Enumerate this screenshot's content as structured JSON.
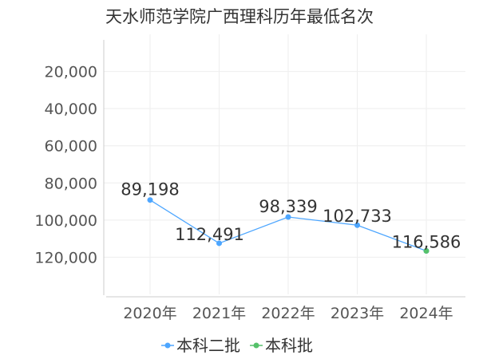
{
  "chart_data": {
    "type": "line",
    "title": "天水师范学院广西理科历年最低名次",
    "categories": [
      "2020年",
      "2021年",
      "2022年",
      "2023年",
      "2024年"
    ],
    "y_ticks": [
      "20,000",
      "40,000",
      "60,000",
      "80,000",
      "100,000",
      "120,000"
    ],
    "ylim": [
      140000,
      0
    ],
    "y_inverted": true,
    "series": [
      {
        "name": "本科二批",
        "color": "#4da6ff",
        "values": [
          89198,
          112491,
          98339,
          102733,
          116586
        ],
        "data_labels": [
          "89,198",
          "112,491",
          "98,339",
          "102,733",
          "116,586"
        ]
      },
      {
        "name": "本科批",
        "color": "#55c16a",
        "values": [
          null,
          null,
          null,
          null,
          116586
        ]
      }
    ],
    "grid": true,
    "legend_position": "bottom"
  }
}
